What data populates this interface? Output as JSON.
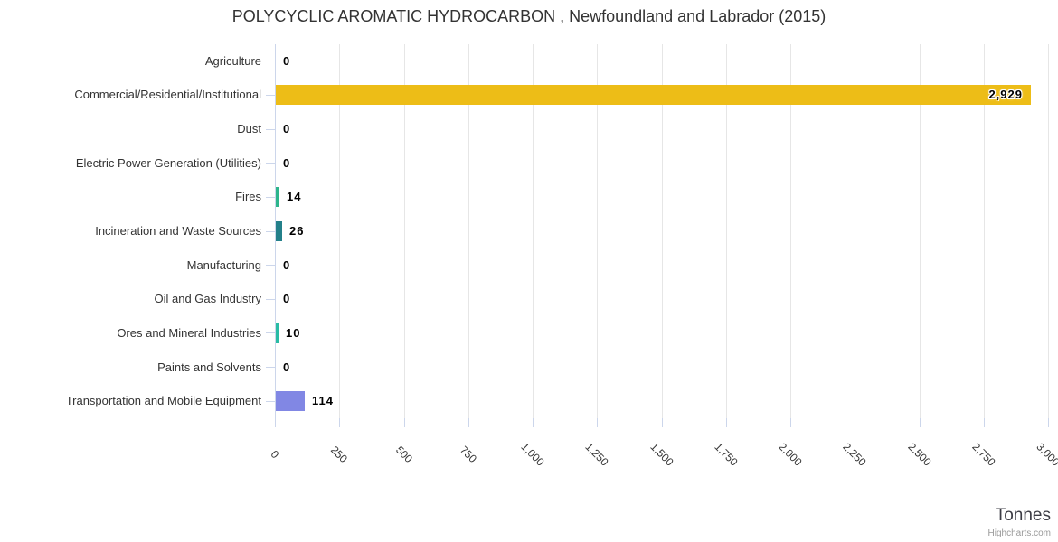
{
  "chart_data": {
    "type": "bar",
    "orientation": "horizontal",
    "title": "POLYCYCLIC AROMATIC HYDROCARBON , Newfoundland and Labrador (2015)",
    "categories": [
      "Agriculture",
      "Commercial/Residential/Institutional",
      "Dust",
      "Electric Power Generation (Utilities)",
      "Fires",
      "Incineration and Waste Sources",
      "Manufacturing",
      "Oil and Gas Industry",
      "Ores and Mineral Industries",
      "Paints and Solvents",
      "Transportation and Mobile Equipment"
    ],
    "values": [
      0,
      2929,
      0,
      0,
      14,
      26,
      0,
      0,
      10,
      0,
      114
    ],
    "value_labels": [
      "0",
      "2,929",
      "0",
      "0",
      "14",
      "26",
      "0",
      "0",
      "10",
      "0",
      "114"
    ],
    "bar_colors": [
      null,
      "#edbd17",
      null,
      null,
      "#2db58c",
      "#23808a",
      null,
      null,
      "#29bca5",
      null,
      "#8187e4"
    ],
    "xlabel": "Tonnes",
    "ylabel": "",
    "xlim": [
      0,
      3000
    ],
    "x_ticks": [
      0,
      250,
      500,
      750,
      1000,
      1250,
      1500,
      1750,
      2000,
      2250,
      2500,
      2750,
      3000
    ],
    "x_tick_labels": [
      "0",
      "250",
      "500",
      "750",
      "1,000",
      "1,250",
      "1,500",
      "1,750",
      "2,000",
      "2,250",
      "2,500",
      "2,750",
      "3,000"
    ],
    "x_tick_label_rotation_deg": 45,
    "grid": "vertical-only",
    "legend": "none"
  },
  "credit": "Highcharts.com",
  "colors": {
    "background": "#ffffff",
    "grid": "#e6e6e6",
    "axis": "#ccd6eb",
    "title_text": "#333333",
    "category_text": "#333333",
    "value_text": "#000000",
    "value_halo": "#ffffff",
    "axis_title_text": "#3c3c44",
    "credit_text": "#999999"
  }
}
